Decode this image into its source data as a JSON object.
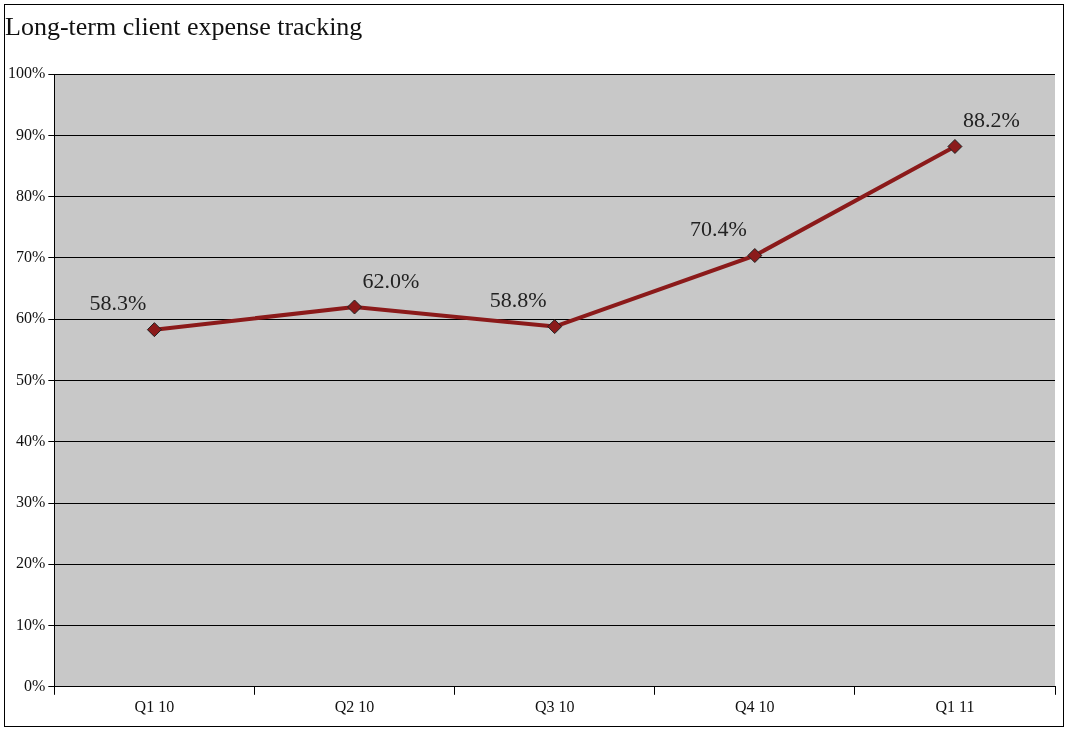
{
  "chart_data": {
    "type": "line",
    "title": "Long-term client expense tracking",
    "categories": [
      "Q1 10",
      "Q2 10",
      "Q3 10",
      "Q4 10",
      "Q1 11"
    ],
    "series": [
      {
        "color": "#8b1a1a",
        "values": [
          58.3,
          62.0,
          58.8,
          70.4,
          88.2
        ],
        "value_labels": [
          "58.3%",
          "62.0%",
          "58.8%",
          "70.4%",
          "88.2%"
        ]
      }
    ],
    "ylim": [
      0,
      100
    ],
    "yticks": [
      {
        "value": 0,
        "label": "0%"
      },
      {
        "value": 10,
        "label": "10%"
      },
      {
        "value": 20,
        "label": "20%"
      },
      {
        "value": 30,
        "label": "30%"
      },
      {
        "value": 40,
        "label": "40%"
      },
      {
        "value": 50,
        "label": "50%"
      },
      {
        "value": 60,
        "label": "60%"
      },
      {
        "value": 70,
        "label": "70%"
      },
      {
        "value": 80,
        "label": "80%"
      },
      {
        "value": 90,
        "label": "90%"
      },
      {
        "value": 100,
        "label": "100%"
      }
    ],
    "grid": "y",
    "legend": false,
    "marker": "diamond",
    "line_style": "solid"
  }
}
